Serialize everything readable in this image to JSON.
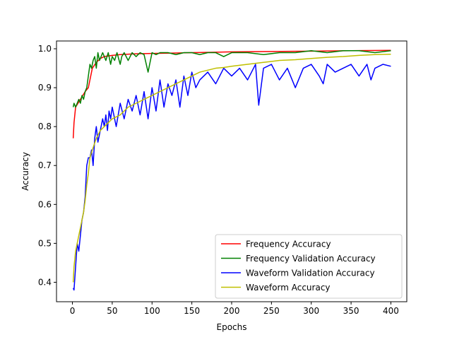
{
  "chart_data": {
    "type": "line",
    "title": "",
    "xlabel": "Epochs",
    "ylabel": "Accuracy",
    "xlim": [
      -20,
      420
    ],
    "ylim": [
      0.35,
      1.02
    ],
    "xticks": [
      0,
      50,
      100,
      150,
      200,
      250,
      300,
      350,
      400
    ],
    "yticks": [
      0.4,
      0.5,
      0.6,
      0.7,
      0.8,
      0.9,
      1.0
    ],
    "xtick_labels": [
      "0",
      "50",
      "100",
      "150",
      "200",
      "250",
      "300",
      "350",
      "400"
    ],
    "ytick_labels": [
      "0.4",
      "0.5",
      "0.6",
      "0.7",
      "0.8",
      "0.9",
      "1.0"
    ],
    "grid": false,
    "legend_position": "lower-right",
    "series": [
      {
        "name": "Frequency Accuracy",
        "color": "#ff0000",
        "x": [
          1,
          2,
          4,
          7,
          10,
          13,
          16,
          20,
          25,
          30,
          35,
          40,
          50,
          60,
          80,
          100,
          125,
          150,
          175,
          200,
          250,
          300,
          350,
          400
        ],
        "y": [
          0.77,
          0.81,
          0.85,
          0.86,
          0.87,
          0.88,
          0.89,
          0.9,
          0.95,
          0.965,
          0.975,
          0.98,
          0.983,
          0.985,
          0.987,
          0.988,
          0.989,
          0.99,
          0.991,
          0.992,
          0.993,
          0.994,
          0.995,
          0.996
        ]
      },
      {
        "name": "Frequency Validation Accuracy",
        "color": "#008000",
        "x": [
          1,
          2,
          4,
          6,
          8,
          10,
          12,
          14,
          16,
          18,
          20,
          22,
          24,
          26,
          28,
          30,
          32,
          34,
          36,
          38,
          40,
          42,
          45,
          48,
          50,
          53,
          56,
          60,
          62,
          65,
          70,
          75,
          80,
          85,
          90,
          95,
          100,
          105,
          110,
          120,
          130,
          140,
          150,
          160,
          170,
          180,
          190,
          200,
          220,
          240,
          260,
          280,
          300,
          320,
          340,
          360,
          380,
          400
        ],
        "y": [
          0.85,
          0.86,
          0.85,
          0.86,
          0.87,
          0.86,
          0.88,
          0.87,
          0.89,
          0.9,
          0.93,
          0.96,
          0.95,
          0.97,
          0.98,
          0.95,
          0.99,
          0.97,
          0.98,
          0.99,
          0.98,
          0.97,
          0.99,
          0.96,
          0.98,
          0.97,
          0.99,
          0.96,
          0.98,
          0.99,
          0.97,
          0.99,
          0.98,
          0.99,
          0.985,
          0.94,
          0.99,
          0.985,
          0.99,
          0.99,
          0.985,
          0.99,
          0.99,
          0.985,
          0.99,
          0.99,
          0.98,
          0.99,
          0.99,
          0.985,
          0.99,
          0.99,
          0.995,
          0.99,
          0.995,
          0.995,
          0.99,
          0.995
        ]
      },
      {
        "name": "Waveform Validation Accuracy",
        "color": "#0000ff",
        "x": [
          1,
          2,
          4,
          6,
          8,
          10,
          12,
          14,
          16,
          18,
          20,
          22,
          24,
          26,
          28,
          30,
          32,
          34,
          36,
          38,
          40,
          42,
          44,
          46,
          48,
          50,
          55,
          60,
          65,
          70,
          75,
          80,
          85,
          90,
          95,
          100,
          105,
          110,
          115,
          120,
          125,
          130,
          135,
          140,
          145,
          150,
          155,
          160,
          170,
          180,
          190,
          200,
          210,
          220,
          230,
          234,
          240,
          250,
          260,
          270,
          280,
          290,
          300,
          310,
          315,
          320,
          330,
          340,
          350,
          360,
          370,
          375,
          380,
          390,
          400
        ],
        "y": [
          0.385,
          0.38,
          0.44,
          0.5,
          0.48,
          0.52,
          0.56,
          0.58,
          0.62,
          0.7,
          0.72,
          0.72,
          0.74,
          0.7,
          0.77,
          0.8,
          0.76,
          0.78,
          0.8,
          0.82,
          0.8,
          0.83,
          0.79,
          0.84,
          0.82,
          0.85,
          0.8,
          0.86,
          0.82,
          0.87,
          0.84,
          0.88,
          0.83,
          0.89,
          0.82,
          0.9,
          0.84,
          0.92,
          0.85,
          0.91,
          0.88,
          0.92,
          0.85,
          0.93,
          0.88,
          0.94,
          0.9,
          0.92,
          0.94,
          0.91,
          0.95,
          0.93,
          0.95,
          0.92,
          0.96,
          0.855,
          0.95,
          0.96,
          0.92,
          0.95,
          0.9,
          0.95,
          0.96,
          0.93,
          0.91,
          0.96,
          0.94,
          0.95,
          0.96,
          0.93,
          0.96,
          0.92,
          0.95,
          0.96,
          0.955
        ]
      },
      {
        "name": "Waveform Accuracy",
        "color": "#bfbf00",
        "x": [
          1,
          2,
          4,
          6,
          8,
          10,
          12,
          14,
          16,
          18,
          20,
          22,
          25,
          30,
          35,
          40,
          45,
          50,
          60,
          70,
          80,
          90,
          100,
          110,
          120,
          130,
          140,
          150,
          160,
          170,
          180,
          190,
          200,
          220,
          240,
          260,
          280,
          300,
          320,
          340,
          360,
          380,
          400
        ],
        "y": [
          0.4,
          0.44,
          0.48,
          0.5,
          0.52,
          0.54,
          0.56,
          0.58,
          0.61,
          0.65,
          0.68,
          0.72,
          0.74,
          0.77,
          0.79,
          0.8,
          0.81,
          0.82,
          0.83,
          0.85,
          0.86,
          0.87,
          0.88,
          0.89,
          0.9,
          0.91,
          0.92,
          0.93,
          0.94,
          0.945,
          0.95,
          0.952,
          0.955,
          0.96,
          0.965,
          0.97,
          0.972,
          0.975,
          0.978,
          0.98,
          0.983,
          0.985,
          0.986
        ]
      }
    ]
  }
}
